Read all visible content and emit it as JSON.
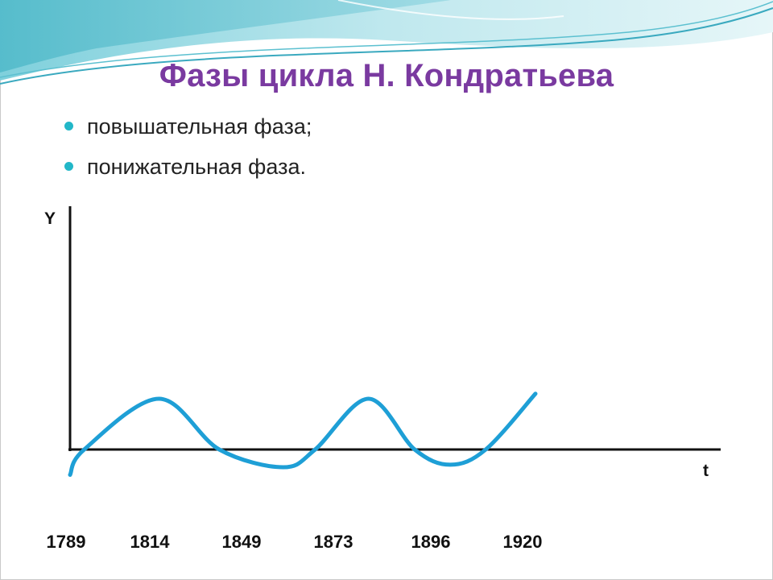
{
  "title": "Фазы цикла Н. Кондратьева",
  "bullets": [
    "повышательная фаза;",
    "понижательная фаза."
  ],
  "colors": {
    "title": "#7a3aa0",
    "bullet": "#22b7c8",
    "curve": "#1e9fd6",
    "axis": "#111111",
    "banner_light": "#bfe8ee",
    "banner_dark": "#6cc9d6"
  },
  "chart_data": {
    "type": "line",
    "xlabel": "t",
    "ylabel": "Y",
    "x_ticks": [
      "1789",
      "1814",
      "1849",
      "1873",
      "1896",
      "1920"
    ],
    "curve_points": [
      {
        "x": 1789,
        "y": -0.5
      },
      {
        "x": 1793,
        "y": 0.0
      },
      {
        "x": 1814,
        "y": 1.0
      },
      {
        "x": 1831,
        "y": 0.0
      },
      {
        "x": 1849,
        "y": -0.35
      },
      {
        "x": 1858,
        "y": 0.0
      },
      {
        "x": 1873,
        "y": 1.0
      },
      {
        "x": 1886,
        "y": 0.0
      },
      {
        "x": 1896,
        "y": -0.3
      },
      {
        "x": 1906,
        "y": 0.0
      },
      {
        "x": 1920,
        "y": 1.1
      }
    ]
  }
}
